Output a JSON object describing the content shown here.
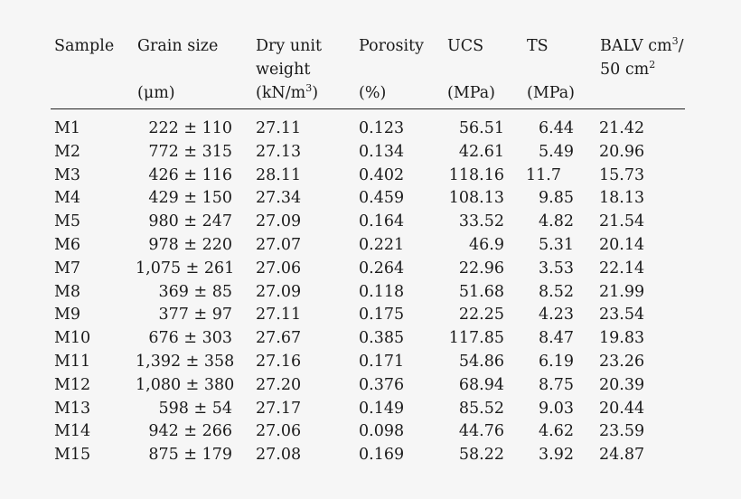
{
  "table": {
    "headers": {
      "sample": {
        "label": "Sample",
        "unit": ""
      },
      "grain_size": {
        "label": "Grain size",
        "unit": "(μm)"
      },
      "dry_unit_weight": {
        "label_line1": "Dry unit",
        "label_line2": "weight",
        "unit_prefix": "(kN/m",
        "unit_sup": "3",
        "unit_suffix": ")"
      },
      "porosity": {
        "label": "Porosity",
        "unit": "(%)"
      },
      "ucs": {
        "label": "UCS",
        "unit": "(MPa)"
      },
      "ts": {
        "label": "TS",
        "unit": "(MPa)"
      },
      "balv": {
        "line1_prefix": "BALV cm",
        "line1_sup": "3",
        "line1_suffix": "/",
        "line2_prefix": "50 cm",
        "line2_sup": "2"
      }
    },
    "rows": [
      {
        "sample": "M1",
        "grain_size": "222 ± 110",
        "dry_unit_weight": "27.11",
        "porosity": "0.123",
        "ucs": "56.51",
        "ts": "6.44",
        "balv": "21.42"
      },
      {
        "sample": "M2",
        "grain_size": "772 ± 315",
        "dry_unit_weight": "27.13",
        "porosity": "0.134",
        "ucs": "42.61",
        "ts": "5.49",
        "balv": "20.96"
      },
      {
        "sample": "M3",
        "grain_size": "426 ± 116",
        "dry_unit_weight": "28.11",
        "porosity": "0.402",
        "ucs": "118.16",
        "ts": "11.7",
        "balv": "15.73"
      },
      {
        "sample": "M4",
        "grain_size": "429 ± 150",
        "dry_unit_weight": "27.34",
        "porosity": "0.459",
        "ucs": "108.13",
        "ts": "9.85",
        "balv": "18.13"
      },
      {
        "sample": "M5",
        "grain_size": "980 ± 247",
        "dry_unit_weight": "27.09",
        "porosity": "0.164",
        "ucs": "33.52",
        "ts": "4.82",
        "balv": "21.54"
      },
      {
        "sample": "M6",
        "grain_size": "978 ± 220",
        "dry_unit_weight": "27.07",
        "porosity": "0.221",
        "ucs": "46.9",
        "ts": "5.31",
        "balv": "20.14"
      },
      {
        "sample": "M7",
        "grain_size": "1,075 ± 261",
        "dry_unit_weight": "27.06",
        "porosity": "0.264",
        "ucs": "22.96",
        "ts": "3.53",
        "balv": "22.14"
      },
      {
        "sample": "M8",
        "grain_size": "369 ± 85",
        "dry_unit_weight": "27.09",
        "porosity": "0.118",
        "ucs": "51.68",
        "ts": "8.52",
        "balv": "21.99"
      },
      {
        "sample": "M9",
        "grain_size": "377 ± 97",
        "dry_unit_weight": "27.11",
        "porosity": "0.175",
        "ucs": "22.25",
        "ts": "4.23",
        "balv": "23.54"
      },
      {
        "sample": "M10",
        "grain_size": "676 ± 303",
        "dry_unit_weight": "27.67",
        "porosity": "0.385",
        "ucs": "117.85",
        "ts": "8.47",
        "balv": "19.83"
      },
      {
        "sample": "M11",
        "grain_size": "1,392 ± 358",
        "dry_unit_weight": "27.16",
        "porosity": "0.171",
        "ucs": "54.86",
        "ts": "6.19",
        "balv": "23.26"
      },
      {
        "sample": "M12",
        "grain_size": "1,080 ± 380",
        "dry_unit_weight": "27.20",
        "porosity": "0.376",
        "ucs": "68.94",
        "ts": "8.75",
        "balv": "20.39"
      },
      {
        "sample": "M13",
        "grain_size": "598 ± 54",
        "dry_unit_weight": "27.17",
        "porosity": "0.149",
        "ucs": "85.52",
        "ts": "9.03",
        "balv": "20.44"
      },
      {
        "sample": "M14",
        "grain_size": "942 ± 266",
        "dry_unit_weight": "27.06",
        "porosity": "0.098",
        "ucs": "44.76",
        "ts": "4.62",
        "balv": "23.59"
      },
      {
        "sample": "M15",
        "grain_size": "875 ± 179",
        "dry_unit_weight": "27.08",
        "porosity": "0.169",
        "ucs": "58.22",
        "ts": "3.92",
        "balv": "24.87"
      }
    ]
  }
}
